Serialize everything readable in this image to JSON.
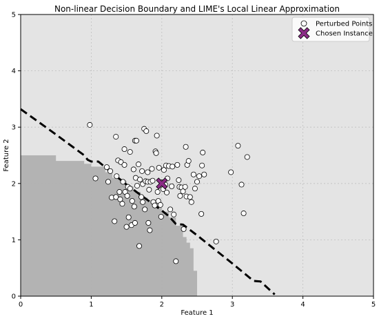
{
  "chart_data": {
    "type": "scatter",
    "title": "Non-linear Decision Boundary and LIME's Local Linear Approximation",
    "xlabel": "Feature 1",
    "ylabel": "Feature 2",
    "xlim": [
      0,
      5
    ],
    "ylim": [
      0,
      5
    ],
    "xticks": [
      "0",
      "1",
      "2",
      "3",
      "4",
      "5"
    ],
    "yticks": [
      "0",
      "1",
      "2",
      "3",
      "4",
      "5"
    ],
    "grid": true,
    "legend_position": "top-right",
    "colors": {
      "background_region": "#e4e4e4",
      "class_region": "#b3b3b3",
      "point_fill": "#ffffff",
      "point_edge": "#000000",
      "instance": "#8b2c86",
      "boundary": "#000000"
    },
    "class_region_steps": [
      [
        0.0,
        2.5
      ],
      [
        0.4,
        2.5
      ],
      [
        0.5,
        2.4
      ],
      [
        0.8,
        2.4
      ],
      [
        0.9,
        2.35
      ],
      [
        1.0,
        2.3
      ],
      [
        1.1,
        2.3
      ],
      [
        1.2,
        2.2
      ],
      [
        1.3,
        2.1
      ],
      [
        1.4,
        2.05
      ],
      [
        1.5,
        1.95
      ],
      [
        1.6,
        1.85
      ],
      [
        1.7,
        1.75
      ],
      [
        1.8,
        1.7
      ],
      [
        1.9,
        1.6
      ],
      [
        2.0,
        1.5
      ],
      [
        2.1,
        1.4
      ],
      [
        2.2,
        1.25
      ],
      [
        2.3,
        1.05
      ],
      [
        2.35,
        0.95
      ],
      [
        2.4,
        0.85
      ],
      [
        2.45,
        0.45
      ],
      [
        2.5,
        0.45
      ]
    ],
    "boundary_line": {
      "style": "dashed",
      "points": [
        [
          0.0,
          3.32
        ],
        [
          0.5,
          2.87
        ],
        [
          0.9,
          2.5
        ],
        [
          0.95,
          2.42
        ],
        [
          1.0,
          2.39
        ],
        [
          1.1,
          2.39
        ],
        [
          1.5,
          1.98
        ],
        [
          2.0,
          1.52
        ],
        [
          2.1,
          1.42
        ],
        [
          2.15,
          1.35
        ],
        [
          2.2,
          1.28
        ],
        [
          2.3,
          1.27
        ],
        [
          2.5,
          1.08
        ],
        [
          3.0,
          0.58
        ],
        [
          3.3,
          0.27
        ],
        [
          3.4,
          0.26
        ],
        [
          3.6,
          0.03
        ]
      ]
    },
    "series": [
      {
        "name": "Perturbed Points",
        "marker": "circle",
        "points": [
          [
            0.98,
            3.04
          ],
          [
            1.06,
            2.09
          ],
          [
            1.22,
            2.29
          ],
          [
            1.24,
            2.03
          ],
          [
            1.27,
            2.22
          ],
          [
            1.29,
            1.75
          ],
          [
            1.33,
            1.33
          ],
          [
            1.35,
            2.83
          ],
          [
            1.35,
            1.76
          ],
          [
            1.36,
            2.13
          ],
          [
            1.38,
            2.41
          ],
          [
            1.4,
            1.85
          ],
          [
            1.41,
            1.72
          ],
          [
            1.42,
            2.38
          ],
          [
            1.44,
            1.64
          ],
          [
            1.45,
            2.03
          ],
          [
            1.47,
            2.33
          ],
          [
            1.47,
            2.61
          ],
          [
            1.48,
            1.85
          ],
          [
            1.5,
            1.23
          ],
          [
            1.51,
            1.78
          ],
          [
            1.52,
            1.94
          ],
          [
            1.53,
            1.4
          ],
          [
            1.55,
            2.56
          ],
          [
            1.55,
            1.91
          ],
          [
            1.57,
            1.26
          ],
          [
            1.58,
            1.69
          ],
          [
            1.6,
            2.25
          ],
          [
            1.61,
            1.59
          ],
          [
            1.62,
            2.76
          ],
          [
            1.62,
            1.3
          ],
          [
            1.63,
            2.1
          ],
          [
            1.64,
            2.76
          ],
          [
            1.65,
            1.96
          ],
          [
            1.67,
            2.34
          ],
          [
            1.68,
            0.89
          ],
          [
            1.69,
            2.07
          ],
          [
            1.71,
            1.76
          ],
          [
            1.72,
            2.22
          ],
          [
            1.73,
            1.99
          ],
          [
            1.73,
            1.67
          ],
          [
            1.75,
            2.97
          ],
          [
            1.76,
            1.54
          ],
          [
            1.77,
            2.04
          ],
          [
            1.78,
            2.93
          ],
          [
            1.8,
            2.2
          ],
          [
            1.8,
            2.03
          ],
          [
            1.81,
            1.3
          ],
          [
            1.82,
            1.89
          ],
          [
            1.83,
            1.17
          ],
          [
            1.84,
            2.03
          ],
          [
            1.86,
            2.26
          ],
          [
            1.87,
            2.05
          ],
          [
            1.88,
            1.67
          ],
          [
            1.9,
            1.61
          ],
          [
            1.91,
            2.57
          ],
          [
            1.92,
            2.54
          ],
          [
            1.93,
            2.85
          ],
          [
            1.94,
            1.85
          ],
          [
            1.95,
            1.69
          ],
          [
            1.96,
            2.28
          ],
          [
            1.98,
            1.62
          ],
          [
            1.99,
            1.41
          ],
          [
            2.0,
            2.02
          ],
          [
            2.02,
            1.9
          ],
          [
            2.03,
            2.24
          ],
          [
            2.05,
            1.98
          ],
          [
            2.06,
            2.32
          ],
          [
            2.07,
            1.84
          ],
          [
            2.08,
            2.09
          ],
          [
            2.1,
            2.31
          ],
          [
            2.12,
            1.54
          ],
          [
            2.14,
            1.95
          ],
          [
            2.15,
            2.3
          ],
          [
            2.17,
            1.45
          ],
          [
            2.2,
            0.62
          ],
          [
            2.22,
            2.33
          ],
          [
            2.24,
            2.06
          ],
          [
            2.25,
            1.94
          ],
          [
            2.26,
            1.78
          ],
          [
            2.28,
            1.93
          ],
          [
            2.3,
            1.86
          ],
          [
            2.31,
            1.19
          ],
          [
            2.33,
            1.94
          ],
          [
            2.34,
            2.65
          ],
          [
            2.35,
            1.77
          ],
          [
            2.36,
            2.33
          ],
          [
            2.38,
            2.4
          ],
          [
            2.4,
            1.76
          ],
          [
            2.42,
            1.67
          ],
          [
            2.45,
            2.16
          ],
          [
            2.47,
            1.91
          ],
          [
            2.5,
            2.03
          ],
          [
            2.53,
            2.13
          ],
          [
            2.56,
            1.46
          ],
          [
            2.57,
            2.32
          ],
          [
            2.58,
            2.55
          ],
          [
            2.6,
            2.16
          ],
          [
            2.77,
            0.97
          ],
          [
            2.98,
            2.2
          ],
          [
            3.08,
            2.67
          ],
          [
            3.13,
            1.98
          ],
          [
            3.16,
            1.47
          ],
          [
            3.21,
            2.47
          ]
        ]
      },
      {
        "name": "Chosen Instance",
        "marker": "x",
        "points": [
          [
            2.0,
            2.0
          ]
        ]
      }
    ]
  }
}
